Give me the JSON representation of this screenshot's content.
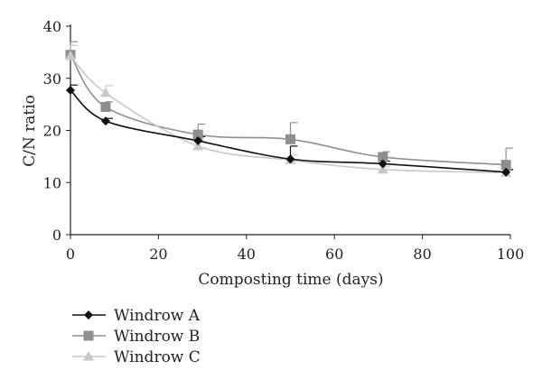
{
  "chart_data": {
    "type": "line",
    "title": "",
    "xlabel": "Composting time (days)",
    "ylabel": "C/N ratio",
    "xlim": [
      0,
      100
    ],
    "ylim": [
      0,
      40
    ],
    "xticks": [
      0,
      20,
      40,
      60,
      80,
      100
    ],
    "yticks": [
      0,
      10,
      20,
      30,
      40
    ],
    "grid": false,
    "legend_position": "bottom-left",
    "series": [
      {
        "name": "Windrow A",
        "marker": "diamond",
        "color": "#111111",
        "x": [
          0,
          8,
          29,
          50,
          71,
          99
        ],
        "y": [
          27.7,
          21.8,
          18.0,
          14.5,
          13.6,
          12.0
        ],
        "error": [
          1.0,
          0.5,
          0.8,
          2.5,
          0.5,
          0.5
        ]
      },
      {
        "name": "Windrow B",
        "marker": "square",
        "color": "#8f8f8f",
        "x": [
          0,
          8,
          29,
          50,
          71,
          99
        ],
        "y": [
          34.5,
          24.5,
          19.2,
          18.3,
          14.9,
          13.4
        ],
        "error": [
          2.5,
          1.0,
          2.0,
          3.2,
          1.0,
          3.2
        ]
      },
      {
        "name": "Windrow C",
        "marker": "triangle",
        "color": "#c8c8c8",
        "x": [
          0,
          8,
          29,
          50,
          71,
          99
        ],
        "y": [
          34.3,
          27.2,
          17.0,
          14.3,
          12.5,
          11.9
        ],
        "error": [
          2.0,
          1.4,
          1.0,
          1.0,
          0.5,
          0.5
        ]
      }
    ]
  }
}
